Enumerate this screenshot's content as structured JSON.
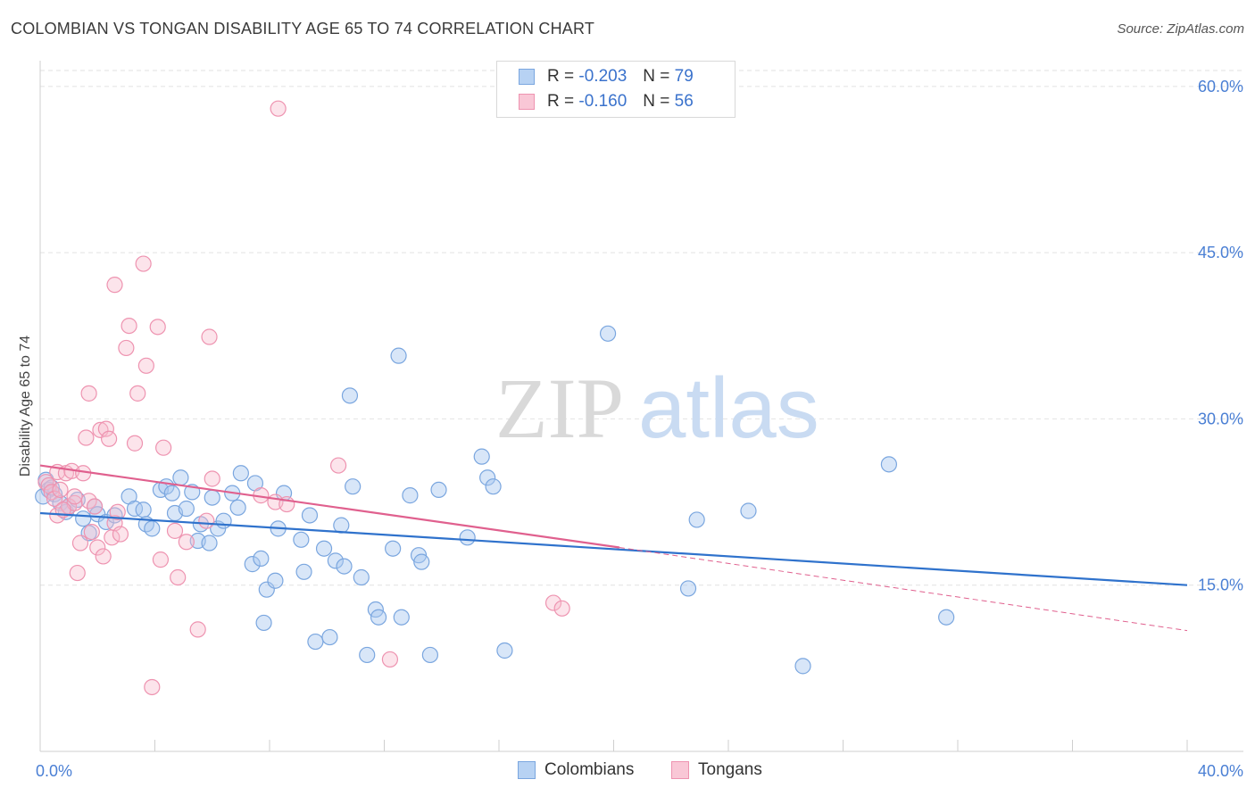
{
  "title": "COLOMBIAN VS TONGAN DISABILITY AGE 65 TO 74 CORRELATION CHART",
  "source": "Source: ZipAtlas.com",
  "watermark": {
    "zip": "ZIP",
    "atlas": "atlas"
  },
  "legend": {
    "rows": [
      {
        "r_label": "R =",
        "r_value": "-0.203",
        "n_label": "N =",
        "n_value": "79"
      },
      {
        "r_label": "R =",
        "r_value": "-0.160",
        "n_label": "N =",
        "n_value": "56"
      }
    ]
  },
  "bottom_legend": [
    "Colombians",
    "Tongans"
  ],
  "colors": {
    "colombians_fill": "#a9c8f0",
    "colombians_stroke": "#7aa6df",
    "colombians_line": "#2f72cc",
    "tongans_fill": "#f7bccd",
    "tongans_stroke": "#ee93b0",
    "tongans_line": "#e0608e"
  },
  "chart_data": {
    "type": "scatter",
    "ylabel": "Disability Age 65 to 74",
    "xlim": [
      0,
      40
    ],
    "ylim": [
      0,
      62
    ],
    "x_tick_labels": [
      "0.0%",
      "40.0%"
    ],
    "y_ticks": [
      15,
      30,
      45,
      60
    ],
    "y_tick_labels": [
      "15.0%",
      "30.0%",
      "45.0%",
      "60.0%"
    ],
    "grid": true,
    "series": [
      {
        "name": "Colombians",
        "points": [
          [
            0.2,
            24.5
          ],
          [
            0.3,
            23.6
          ],
          [
            0.5,
            23.2
          ],
          [
            0.7,
            22.4
          ],
          [
            0.9,
            21.6
          ],
          [
            1.0,
            22.1
          ],
          [
            1.3,
            22.7
          ],
          [
            1.5,
            21.0
          ],
          [
            1.7,
            19.7
          ],
          [
            1.9,
            22.1
          ],
          [
            2.0,
            21.4
          ],
          [
            2.3,
            20.7
          ],
          [
            2.6,
            21.3
          ],
          [
            3.1,
            23.0
          ],
          [
            3.3,
            21.9
          ],
          [
            3.6,
            21.8
          ],
          [
            3.7,
            20.5
          ],
          [
            3.9,
            20.1
          ],
          [
            4.2,
            23.6
          ],
          [
            4.4,
            23.9
          ],
          [
            4.6,
            23.3
          ],
          [
            4.7,
            21.5
          ],
          [
            4.9,
            24.7
          ],
          [
            5.1,
            21.9
          ],
          [
            5.3,
            23.4
          ],
          [
            5.5,
            19.0
          ],
          [
            5.6,
            20.5
          ],
          [
            5.9,
            18.8
          ],
          [
            6.0,
            22.9
          ],
          [
            6.2,
            20.1
          ],
          [
            6.4,
            20.8
          ],
          [
            6.7,
            23.3
          ],
          [
            6.9,
            22.0
          ],
          [
            7.0,
            25.1
          ],
          [
            7.4,
            16.9
          ],
          [
            7.5,
            24.2
          ],
          [
            7.7,
            17.4
          ],
          [
            7.8,
            11.6
          ],
          [
            7.9,
            14.6
          ],
          [
            8.2,
            15.4
          ],
          [
            8.3,
            20.1
          ],
          [
            8.5,
            23.3
          ],
          [
            9.1,
            19.1
          ],
          [
            9.2,
            16.2
          ],
          [
            9.4,
            21.3
          ],
          [
            9.6,
            9.9
          ],
          [
            9.9,
            18.3
          ],
          [
            10.1,
            10.3
          ],
          [
            10.3,
            17.2
          ],
          [
            10.5,
            20.4
          ],
          [
            10.6,
            16.7
          ],
          [
            10.8,
            32.1
          ],
          [
            10.9,
            23.9
          ],
          [
            11.2,
            15.7
          ],
          [
            11.4,
            8.7
          ],
          [
            11.7,
            12.8
          ],
          [
            11.8,
            12.1
          ],
          [
            12.3,
            18.3
          ],
          [
            12.5,
            35.7
          ],
          [
            12.6,
            12.1
          ],
          [
            12.9,
            23.1
          ],
          [
            13.2,
            17.7
          ],
          [
            13.3,
            17.1
          ],
          [
            13.6,
            8.7
          ],
          [
            13.9,
            23.6
          ],
          [
            14.9,
            19.3
          ],
          [
            15.4,
            26.6
          ],
          [
            15.6,
            24.7
          ],
          [
            15.8,
            23.9
          ],
          [
            16.2,
            9.1
          ],
          [
            19.8,
            37.7
          ],
          [
            22.6,
            14.7
          ],
          [
            22.9,
            20.9
          ],
          [
            24.7,
            21.7
          ],
          [
            26.6,
            7.7
          ],
          [
            29.6,
            25.9
          ],
          [
            31.6,
            12.1
          ],
          [
            0.1,
            23.0
          ],
          [
            0.4,
            23.8
          ]
        ]
      },
      {
        "name": "Tongans",
        "points": [
          [
            0.2,
            24.3
          ],
          [
            0.3,
            24.0
          ],
          [
            0.4,
            23.4
          ],
          [
            0.5,
            22.8
          ],
          [
            0.6,
            21.3
          ],
          [
            0.6,
            25.2
          ],
          [
            0.7,
            23.6
          ],
          [
            0.9,
            25.1
          ],
          [
            1.0,
            22.1
          ],
          [
            1.1,
            25.3
          ],
          [
            1.2,
            22.4
          ],
          [
            1.3,
            16.1
          ],
          [
            1.4,
            18.8
          ],
          [
            1.5,
            25.1
          ],
          [
            1.6,
            28.3
          ],
          [
            1.7,
            22.6
          ],
          [
            1.7,
            32.3
          ],
          [
            1.8,
            19.8
          ],
          [
            1.9,
            22.1
          ],
          [
            2.0,
            18.4
          ],
          [
            2.1,
            29.0
          ],
          [
            2.2,
            17.6
          ],
          [
            2.3,
            29.1
          ],
          [
            2.4,
            28.2
          ],
          [
            2.5,
            19.3
          ],
          [
            2.6,
            20.6
          ],
          [
            2.6,
            42.1
          ],
          [
            2.8,
            19.6
          ],
          [
            3.0,
            36.4
          ],
          [
            3.1,
            38.4
          ],
          [
            3.3,
            27.8
          ],
          [
            3.4,
            32.3
          ],
          [
            3.6,
            44.0
          ],
          [
            3.7,
            34.8
          ],
          [
            3.9,
            5.8
          ],
          [
            4.1,
            38.3
          ],
          [
            4.2,
            17.3
          ],
          [
            4.3,
            27.4
          ],
          [
            4.7,
            19.9
          ],
          [
            4.8,
            15.7
          ],
          [
            5.1,
            18.9
          ],
          [
            5.5,
            11.0
          ],
          [
            5.8,
            20.8
          ],
          [
            5.9,
            37.4
          ],
          [
            6.0,
            24.6
          ],
          [
            7.7,
            23.1
          ],
          [
            8.2,
            22.5
          ],
          [
            8.3,
            58.0
          ],
          [
            8.6,
            22.3
          ],
          [
            10.4,
            25.8
          ],
          [
            12.2,
            8.3
          ],
          [
            17.9,
            13.4
          ],
          [
            18.2,
            12.9
          ],
          [
            0.8,
            21.8
          ],
          [
            1.2,
            23.0
          ],
          [
            2.7,
            21.6
          ]
        ]
      }
    ],
    "trend_lines": [
      {
        "series": "Colombians",
        "x": [
          0,
          40
        ],
        "y": [
          21.5,
          15.0
        ],
        "dashed": false
      },
      {
        "series": "Tongans",
        "x": [
          0,
          20.2
        ],
        "y": [
          25.8,
          18.4
        ],
        "dashed": false
      },
      {
        "series": "Tongans",
        "x": [
          20.2,
          40
        ],
        "y": [
          18.4,
          10.9
        ],
        "dashed": true
      }
    ]
  }
}
